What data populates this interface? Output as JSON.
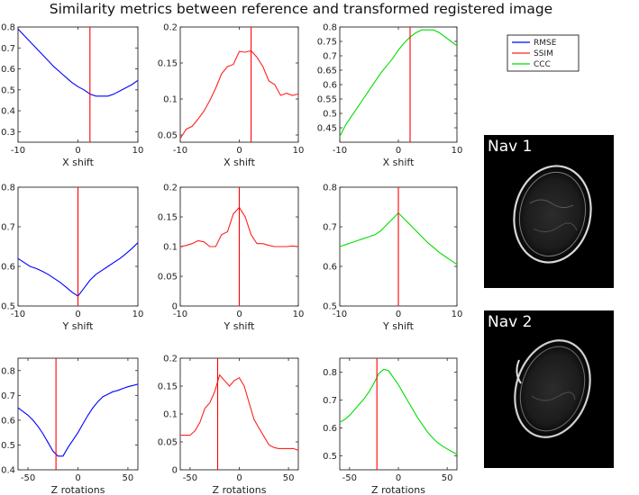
{
  "figure_title": "Similarity metrics between reference and transformed registered image",
  "colors": {
    "RMSE": "#0000ff",
    "SSIM": "#ff2020",
    "CCC": "#00dd00",
    "marker": "#ff0000"
  },
  "legend": [
    "RMSE",
    "SSIM",
    "CCC"
  ],
  "images": [
    {
      "label": "Nav 1"
    },
    {
      "label": "Nav 2"
    }
  ],
  "chart_data": [
    {
      "type": "line",
      "metric": "RMSE",
      "xlabel": "X shift",
      "xlim": [
        -10,
        10
      ],
      "ylim": [
        0.25,
        0.8
      ],
      "xticks": [
        -10,
        0,
        10
      ],
      "yticks": [
        0.3,
        0.4,
        0.5,
        0.6,
        0.7,
        0.8
      ],
      "xtick_labels": [
        "-10",
        "0",
        "10"
      ],
      "ytick_labels": [
        "0.3",
        "0.4",
        "0.5",
        "0.6",
        "0.7",
        "0.8"
      ],
      "x": [
        -10,
        -9,
        -8,
        -7,
        -6,
        -5,
        -4,
        -3,
        -2,
        -1,
        0,
        1,
        2,
        3,
        4,
        5,
        6,
        7,
        8,
        9,
        10
      ],
      "y": [
        0.79,
        0.76,
        0.73,
        0.7,
        0.67,
        0.64,
        0.61,
        0.585,
        0.56,
        0.535,
        0.515,
        0.5,
        0.48,
        0.47,
        0.47,
        0.47,
        0.48,
        0.495,
        0.51,
        0.525,
        0.545
      ],
      "marker_x": 2
    },
    {
      "type": "line",
      "metric": "SSIM",
      "xlabel": "X shift",
      "xlim": [
        -10,
        10
      ],
      "ylim": [
        0.04,
        0.2
      ],
      "xticks": [
        -10,
        0,
        10
      ],
      "yticks": [
        0.05,
        0.1,
        0.15,
        0.2
      ],
      "xtick_labels": [
        "-10",
        "0",
        "10"
      ],
      "ytick_labels": [
        "0.05",
        "0.1",
        "0.15",
        "0.2"
      ],
      "x": [
        -10,
        -9,
        -8,
        -7,
        -6,
        -5,
        -4,
        -3,
        -2,
        -1,
        0,
        1,
        2,
        3,
        4,
        5,
        6,
        7,
        8,
        9,
        10
      ],
      "y": [
        0.045,
        0.058,
        0.062,
        0.072,
        0.083,
        0.098,
        0.115,
        0.135,
        0.145,
        0.148,
        0.166,
        0.165,
        0.167,
        0.158,
        0.145,
        0.125,
        0.12,
        0.105,
        0.108,
        0.105,
        0.107
      ],
      "marker_x": 2
    },
    {
      "type": "line",
      "metric": "CCC",
      "xlabel": "X shift",
      "xlim": [
        -10,
        10
      ],
      "ylim": [
        0.4,
        0.8
      ],
      "xticks": [
        -10,
        0,
        10
      ],
      "yticks": [
        0.45,
        0.5,
        0.55,
        0.6,
        0.65,
        0.7,
        0.75,
        0.8
      ],
      "xtick_labels": [
        "-10",
        "0",
        "10"
      ],
      "ytick_labels": [
        "0.45",
        "0.5",
        "0.55",
        "0.6",
        "0.65",
        "0.7",
        "0.75",
        "0.8"
      ],
      "x": [
        -10,
        -9,
        -8,
        -7,
        -6,
        -5,
        -4,
        -3,
        -2,
        -1,
        0,
        1,
        2,
        3,
        4,
        5,
        6,
        7,
        8,
        9,
        10
      ],
      "y": [
        0.42,
        0.46,
        0.49,
        0.52,
        0.55,
        0.58,
        0.61,
        0.64,
        0.665,
        0.69,
        0.72,
        0.745,
        0.765,
        0.78,
        0.79,
        0.79,
        0.79,
        0.78,
        0.765,
        0.75,
        0.735
      ],
      "marker_x": 2
    },
    {
      "type": "line",
      "metric": "RMSE",
      "xlabel": "Y shift",
      "xlim": [
        -10,
        10
      ],
      "ylim": [
        0.5,
        0.8
      ],
      "xticks": [
        -10,
        0,
        10
      ],
      "yticks": [
        0.5,
        0.6,
        0.7,
        0.8
      ],
      "xtick_labels": [
        "-10",
        "0",
        "10"
      ],
      "ytick_labels": [
        "0.5",
        "0.6",
        "0.7",
        "0.8"
      ],
      "x": [
        -10,
        -9,
        -8,
        -7,
        -6,
        -5,
        -4,
        -3,
        -2,
        -1,
        0,
        1,
        2,
        3,
        4,
        5,
        6,
        7,
        8,
        9,
        10
      ],
      "y": [
        0.62,
        0.61,
        0.6,
        0.595,
        0.588,
        0.58,
        0.57,
        0.56,
        0.548,
        0.535,
        0.525,
        0.545,
        0.565,
        0.58,
        0.59,
        0.6,
        0.61,
        0.62,
        0.632,
        0.645,
        0.66
      ],
      "marker_x": 0
    },
    {
      "type": "line",
      "metric": "SSIM",
      "xlabel": "Y shift",
      "xlim": [
        -10,
        10
      ],
      "ylim": [
        0.0,
        0.2
      ],
      "xticks": [
        -10,
        0,
        10
      ],
      "yticks": [
        0,
        0.05,
        0.1,
        0.15,
        0.2
      ],
      "xtick_labels": [
        "-10",
        "0",
        "10"
      ],
      "ytick_labels": [
        "0",
        "0.05",
        "0.1",
        "0.15",
        "0.2"
      ],
      "x": [
        -10,
        -9,
        -8,
        -7,
        -6,
        -5,
        -4,
        -3,
        -2,
        -1,
        0,
        1,
        2,
        3,
        4,
        5,
        6,
        7,
        8,
        9,
        10
      ],
      "y": [
        0.1,
        0.102,
        0.105,
        0.11,
        0.108,
        0.1,
        0.1,
        0.12,
        0.125,
        0.155,
        0.166,
        0.15,
        0.12,
        0.105,
        0.105,
        0.102,
        0.1,
        0.1,
        0.1,
        0.101,
        0.1
      ],
      "marker_x": 0
    },
    {
      "type": "line",
      "metric": "CCC",
      "xlabel": "Y shift",
      "xlim": [
        -10,
        10
      ],
      "ylim": [
        0.5,
        0.8
      ],
      "xticks": [
        -10,
        0,
        10
      ],
      "yticks": [
        0.5,
        0.6,
        0.7,
        0.8
      ],
      "xtick_labels": [
        "-10",
        "0",
        "10"
      ],
      "ytick_labels": [
        "0.5",
        "0.6",
        "0.7",
        "0.8"
      ],
      "x": [
        -10,
        -9,
        -8,
        -7,
        -6,
        -5,
        -4,
        -3,
        -2,
        -1,
        0,
        1,
        2,
        3,
        4,
        5,
        6,
        7,
        8,
        9,
        10
      ],
      "y": [
        0.65,
        0.655,
        0.66,
        0.665,
        0.67,
        0.675,
        0.68,
        0.69,
        0.705,
        0.72,
        0.735,
        0.72,
        0.705,
        0.69,
        0.675,
        0.66,
        0.648,
        0.635,
        0.625,
        0.615,
        0.605
      ],
      "marker_x": 0
    },
    {
      "type": "line",
      "metric": "RMSE",
      "xlabel": "Z rotations",
      "xlim": [
        -60,
        60
      ],
      "ylim": [
        0.4,
        0.85
      ],
      "xticks": [
        -50,
        0,
        50
      ],
      "yticks": [
        0.4,
        0.5,
        0.6,
        0.7,
        0.8
      ],
      "xtick_labels": [
        "-50",
        "0",
        "50"
      ],
      "ytick_labels": [
        "0.4",
        "0.5",
        "0.6",
        "0.7",
        "0.8"
      ],
      "x": [
        -60,
        -55,
        -50,
        -45,
        -40,
        -35,
        -30,
        -25,
        -20,
        -15,
        -10,
        -5,
        0,
        5,
        10,
        15,
        20,
        25,
        30,
        35,
        40,
        45,
        50,
        55,
        60
      ],
      "y": [
        0.65,
        0.635,
        0.62,
        0.6,
        0.575,
        0.545,
        0.51,
        0.475,
        0.455,
        0.455,
        0.49,
        0.52,
        0.55,
        0.585,
        0.62,
        0.65,
        0.675,
        0.695,
        0.705,
        0.715,
        0.72,
        0.728,
        0.735,
        0.74,
        0.745
      ],
      "marker_x": -22
    },
    {
      "type": "line",
      "metric": "SSIM",
      "xlabel": "Z rotations",
      "xlim": [
        -60,
        60
      ],
      "ylim": [
        0.0,
        0.2
      ],
      "xticks": [
        -50,
        0,
        50
      ],
      "yticks": [
        0,
        0.05,
        0.1,
        0.15,
        0.2
      ],
      "xtick_labels": [
        "-50",
        "0",
        "50"
      ],
      "ytick_labels": [
        "0",
        "0.05",
        "0.1",
        "0.15",
        "0.2"
      ],
      "x": [
        -60,
        -55,
        -50,
        -45,
        -40,
        -35,
        -30,
        -25,
        -20,
        -15,
        -10,
        -5,
        0,
        5,
        10,
        15,
        20,
        25,
        30,
        35,
        40,
        45,
        50,
        55,
        60
      ],
      "y": [
        0.062,
        0.062,
        0.062,
        0.07,
        0.085,
        0.11,
        0.12,
        0.14,
        0.17,
        0.16,
        0.15,
        0.16,
        0.165,
        0.15,
        0.12,
        0.09,
        0.075,
        0.06,
        0.045,
        0.04,
        0.038,
        0.038,
        0.038,
        0.038,
        0.035
      ],
      "marker_x": -22
    },
    {
      "type": "line",
      "metric": "CCC",
      "xlabel": "Z rotations",
      "xlim": [
        -60,
        60
      ],
      "ylim": [
        0.45,
        0.85
      ],
      "xticks": [
        -50,
        0,
        50
      ],
      "yticks": [
        0.5,
        0.6,
        0.7,
        0.8
      ],
      "xtick_labels": [
        "-50",
        "0",
        "50"
      ],
      "ytick_labels": [
        "0.5",
        "0.6",
        "0.7",
        "0.8"
      ],
      "x": [
        -60,
        -55,
        -50,
        -45,
        -40,
        -35,
        -30,
        -25,
        -20,
        -15,
        -10,
        -5,
        0,
        5,
        10,
        15,
        20,
        25,
        30,
        35,
        40,
        45,
        50,
        55,
        60
      ],
      "y": [
        0.62,
        0.63,
        0.645,
        0.665,
        0.685,
        0.705,
        0.73,
        0.76,
        0.795,
        0.81,
        0.805,
        0.78,
        0.755,
        0.725,
        0.695,
        0.665,
        0.635,
        0.61,
        0.585,
        0.565,
        0.548,
        0.535,
        0.525,
        0.515,
        0.505
      ],
      "marker_x": -22
    }
  ]
}
